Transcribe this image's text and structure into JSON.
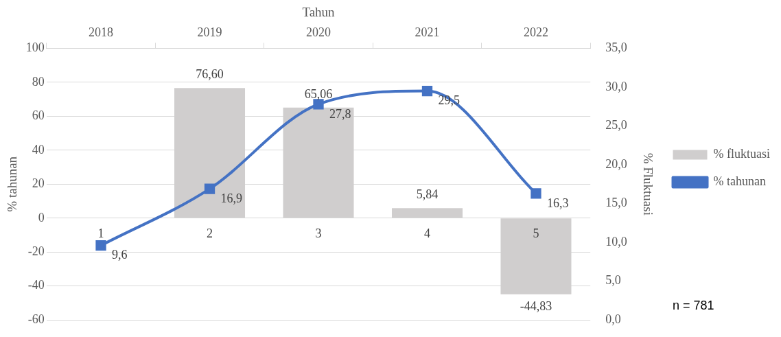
{
  "chart_data": {
    "type": "bar",
    "xlabel": "Tahun",
    "ylabel": "% tahunan",
    "y2label": "% Fluktuasi",
    "categories": [
      "2018",
      "2019",
      "2020",
      "2021",
      "2022"
    ],
    "series": [
      {
        "name": "% fluktuasi",
        "color": "#d0cece",
        "values": [
          null,
          76.6,
          65.06,
          5.84,
          -44.83
        ],
        "value_labels": [
          null,
          "76,60",
          "65,06",
          "5,84",
          "-44,83"
        ]
      },
      {
        "name": "% tahunan",
        "type": "line",
        "axis": "y2",
        "color": "#4472c4",
        "values": [
          9.6,
          16.9,
          27.8,
          29.5,
          16.3
        ],
        "value_labels": [
          "9,6",
          "16,9",
          "27,8",
          "29,5",
          "16,3"
        ],
        "marker": "square"
      }
    ],
    "ylim": [
      -60,
      100
    ],
    "yticks": [
      -60,
      -40,
      -20,
      0,
      20,
      40,
      60,
      80,
      100
    ],
    "y2lim": [
      0,
      35
    ],
    "y2ticks": [
      {
        "value": 0,
        "label": "0,0"
      },
      {
        "value": 5,
        "label": "5,0"
      },
      {
        "value": 10,
        "label": "10,0"
      },
      {
        "value": 15,
        "label": "15,0"
      },
      {
        "value": 20,
        "label": "20,0"
      },
      {
        "value": 25,
        "label": "25,0"
      },
      {
        "value": 30,
        "label": "30,0"
      },
      {
        "value": 35,
        "label": "35,0"
      }
    ],
    "grid": "y",
    "legend": "right",
    "annotations": [
      "1",
      "2",
      "3",
      "4",
      "5",
      "n = 781"
    ]
  }
}
